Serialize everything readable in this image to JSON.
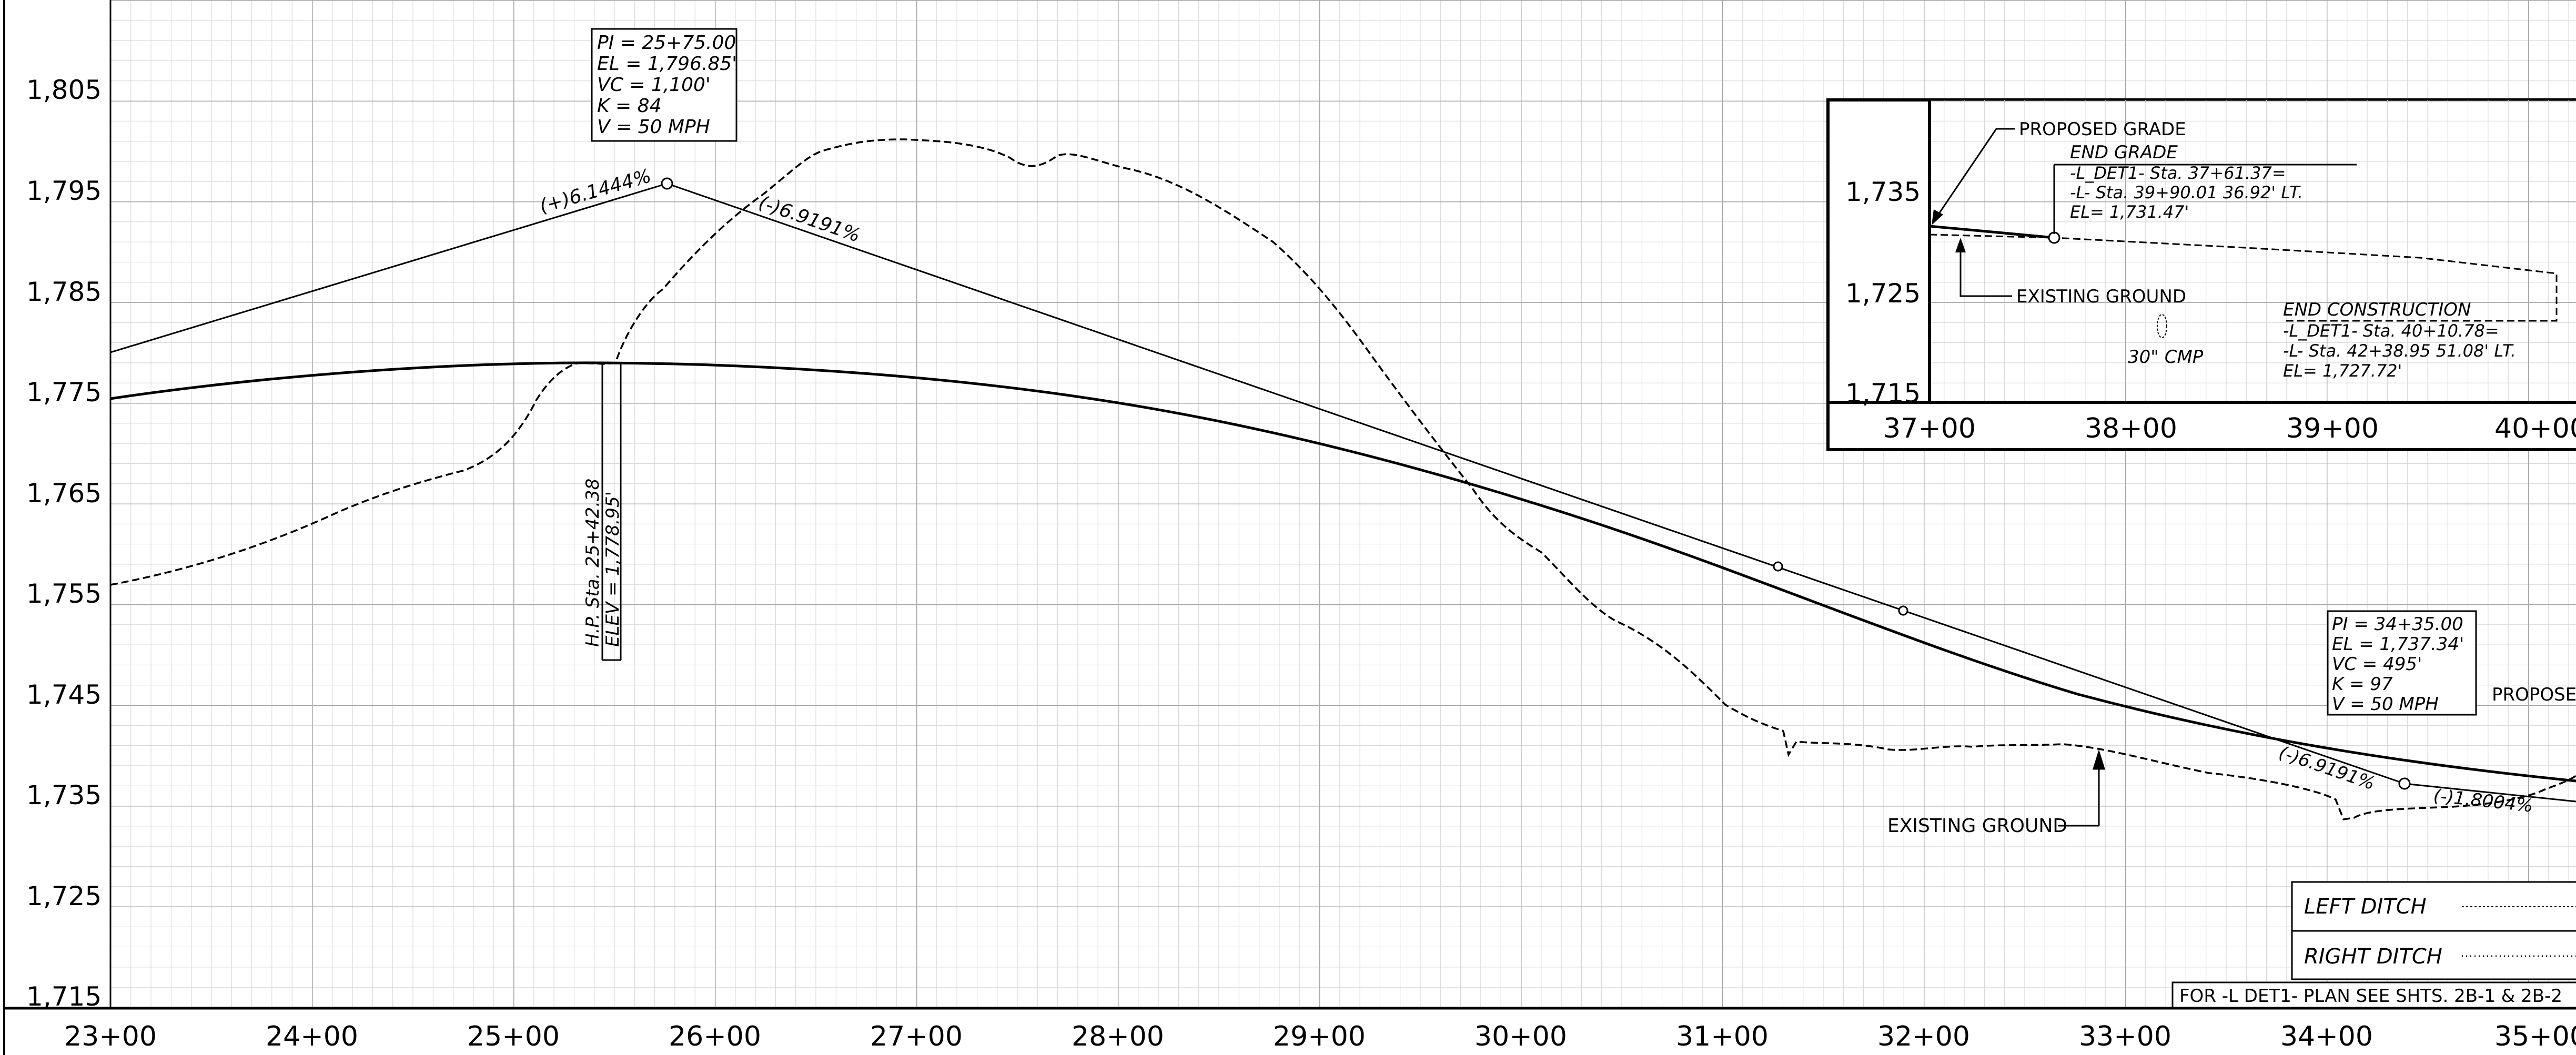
{
  "profile": {
    "elevation_labels": [
      "1,805",
      "1,795",
      "1,785",
      "1,775",
      "1,765",
      "1,755",
      "1,745",
      "1,735",
      "1,725",
      "1,715"
    ],
    "station_labels": [
      "23+00",
      "24+00",
      "25+00",
      "26+00",
      "27+00",
      "28+00",
      "29+00",
      "30+00",
      "31+00",
      "32+00",
      "33+00",
      "34+00",
      "35+00"
    ],
    "curve1": {
      "pi": "PI = 25+75.00",
      "el": "EL = 1,796.85'",
      "vc": "VC = 1,100'",
      "k": "K = 84",
      "v": "V = 50 MPH"
    },
    "curve2": {
      "pi": "PI = 34+35.00",
      "el": "EL = 1,737.34'",
      "vc": "VC = 495'",
      "k": "K = 97",
      "v": "V = 50 MPH"
    },
    "grade_up": "(+)6.1444%",
    "grade_down_1": "(-)6.9191%",
    "grade_down_2": "(-)6.9191%",
    "grade_end": "(-)1.8004%",
    "high_point_sta": "H.P. Sta. 25+42.38",
    "high_point_elev": "ELEV = 1,778.95'",
    "existing_ground": "EXISTING GROUND",
    "proposed_partial": "PROPOSED",
    "legend": {
      "left_ditch": "LEFT DITCH",
      "right_ditch": "RIGHT DITCH"
    },
    "footer_note": "FOR -L DET1- PLAN SEE SHTS. 2B-1 & 2B-2"
  },
  "inset": {
    "elevation_labels": [
      "1,735",
      "1,725",
      "1,715"
    ],
    "station_labels": [
      "37+00",
      "38+00",
      "39+00",
      "40+00"
    ],
    "proposed_grade": "PROPOSED GRADE",
    "end_grade": {
      "title": "END GRADE",
      "line1": "-L_DET1- Sta. 37+61.37=",
      "line2": "-L- Sta. 39+90.01 36.92' LT.",
      "line3": "EL= 1,731.47'"
    },
    "existing_ground": "EXISTING GROUND",
    "culvert": "30\" CMP",
    "end_construction": {
      "title": "END CONSTRUCTION",
      "line1": "-L_DET1- Sta. 40+10.78=",
      "line2": "-L- Sta. 42+38.95 51.08' LT.",
      "line3": "EL= 1,727.72'"
    }
  },
  "colors": {
    "grid_minor": "#d3d3d3",
    "grid_major": "#a8a8a8",
    "ink": "#000000",
    "background": "#ffffff"
  }
}
